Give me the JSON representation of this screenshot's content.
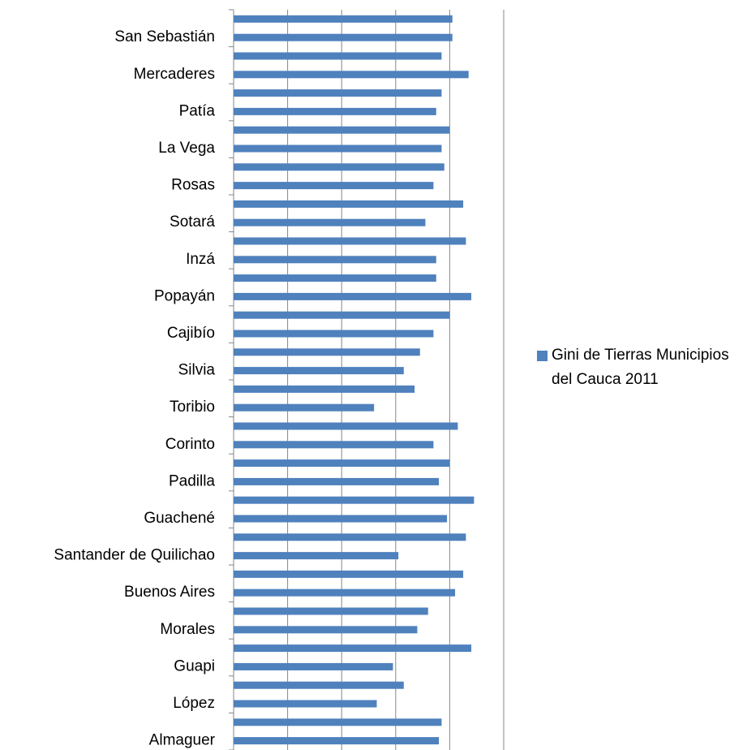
{
  "chart_data": {
    "type": "barh",
    "categories": [
      "Almaguer",
      null,
      "López",
      null,
      "Guapi",
      null,
      "Morales",
      null,
      "Buenos Aires",
      null,
      "Santander de Quilichao",
      null,
      "Guachené",
      null,
      "Padilla",
      null,
      "Corinto",
      null,
      "Toribio",
      null,
      "Silvia",
      null,
      "Cajibío",
      null,
      "Popayán",
      null,
      "Inzá",
      null,
      "Sotará",
      null,
      "Rosas",
      null,
      "La Vega",
      null,
      "Patía",
      null,
      "Mercaderes",
      null,
      "San Sebastián",
      null
    ],
    "series": [
      {
        "name": "Gini de Tierras Municipios del Cauca 2011",
        "color": "#4f81bd",
        "values": [
          0.76,
          0.77,
          0.53,
          0.63,
          0.59,
          0.88,
          0.68,
          0.72,
          0.82,
          0.85,
          0.61,
          0.86,
          0.79,
          0.89,
          0.76,
          0.8,
          0.74,
          0.83,
          0.52,
          0.67,
          0.63,
          0.69,
          0.74,
          0.8,
          0.88,
          0.75,
          0.75,
          0.86,
          0.71,
          0.85,
          0.74,
          0.78,
          0.77,
          0.8,
          0.75,
          0.77,
          0.87,
          0.77,
          0.81,
          0.81
        ]
      }
    ],
    "xlim": [
      0,
      1
    ],
    "xticks": [
      0,
      0.2,
      0.4,
      0.6,
      0.8,
      1
    ],
    "grid": true,
    "legend": "right"
  }
}
